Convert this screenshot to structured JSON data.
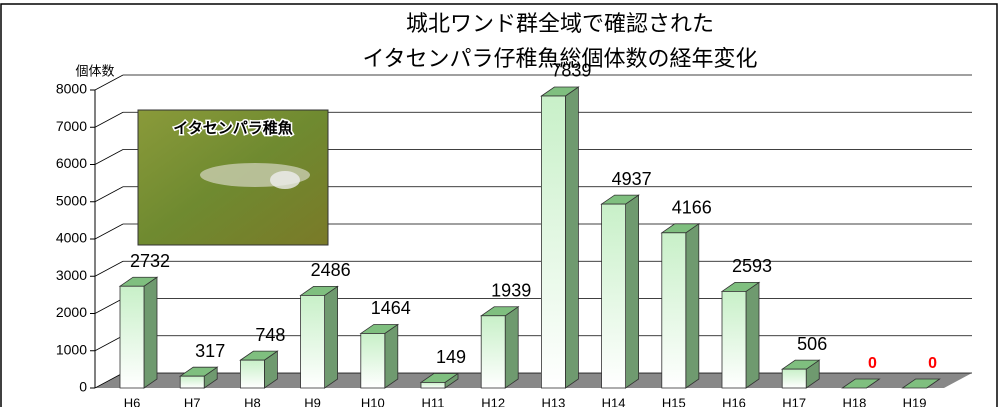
{
  "chart_data": {
    "type": "bar3d",
    "title": [
      "城北ワンド群全域で確認された",
      "イタセンパラ仔稚魚総個体数の経年変化"
    ],
    "y_label": "個体数",
    "inset_label": "イタセンパラ稚魚",
    "categories": [
      "H6",
      "H7",
      "H8",
      "H9",
      "H10",
      "H11",
      "H12",
      "H13",
      "H14",
      "H15",
      "H16",
      "H17",
      "H18",
      "H19"
    ],
    "values": [
      2732,
      317,
      748,
      2486,
      1464,
      149,
      1939,
      7839,
      4937,
      4166,
      2593,
      506,
      0,
      0
    ],
    "value_label_colors": [
      "#000",
      "#000",
      "#000",
      "#000",
      "#000",
      "#000",
      "#000",
      "#000",
      "#000",
      "#000",
      "#000",
      "#000",
      "#ff0000",
      "#ff0000"
    ],
    "color": "#7fbf7f",
    "ylim": [
      0,
      8000
    ],
    "yticks": [
      0,
      1000,
      2000,
      3000,
      4000,
      5000,
      6000,
      7000,
      8000
    ],
    "grid": true
  }
}
